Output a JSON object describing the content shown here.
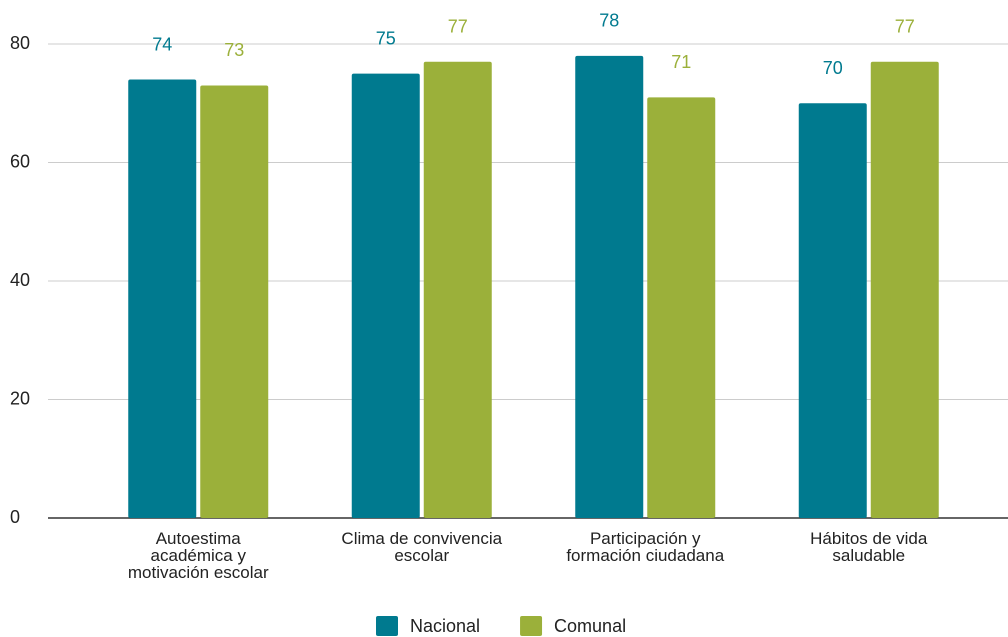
{
  "chart_data": {
    "type": "bar",
    "categories": [
      "Autoestima\nacadémica y\nmotivación escolar",
      "Clima de convivencia\nescolar",
      "Participación y\nformación ciudadana",
      "Hábitos de vida\nsaludable"
    ],
    "series": [
      {
        "name": "Nacional",
        "color": "#007a8f",
        "values": [
          74,
          75,
          78,
          70
        ]
      },
      {
        "name": "Comunal",
        "color": "#9bb03a",
        "values": [
          73,
          77,
          71,
          77
        ]
      }
    ],
    "ylim": [
      0,
      80
    ],
    "yticks": [
      0,
      20,
      40,
      60,
      80
    ],
    "grid": true,
    "legend": "bottom"
  }
}
